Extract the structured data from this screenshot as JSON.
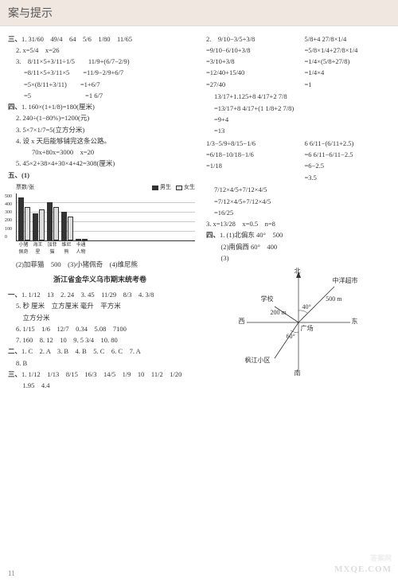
{
  "header": {
    "title": "案与提示"
  },
  "left": {
    "sec3": {
      "label": "三、",
      "item1": "1. 31/60　49/4　64　5/6　1/80　11/65",
      "item2": "2. x=5/4　x=26",
      "item3": {
        "a": "3.　8/11×5+3/11÷1/5　　11/9+(6/7−2/9)",
        "b": "=8/11×5+3/11×5　　=11/9−2/9+6/7",
        "c": "=5×(8/11+3/11)　　=1+6/7",
        "d": "=5　　　　　　　　=1 6/7"
      }
    },
    "sec4": {
      "label": "四、",
      "item1": "1. 160×(1+1/8)=180(厘米)",
      "item2": "2. 240÷(1−80%)=1200(元)",
      "item3": "3. 5×7×1/7=5(立方分米)",
      "item4": "4. 设 x 天后能够铺完这条公路。",
      "item4b": "70x+80x=3000　x=20",
      "item5": "5. 45×2+38×4+30×4+42=308(厘米)"
    },
    "sec5": {
      "label": "五、(1)",
      "chart": {
        "y_axis_label": "票数/张",
        "y_ticks": [
          "0",
          "100",
          "200",
          "300",
          "400",
          "500"
        ],
        "legend": [
          {
            "name": "男生",
            "color": "#333333"
          },
          {
            "name": "女生",
            "color": "#dddddd"
          }
        ],
        "categories": [
          "小猪佩奇",
          "海王星",
          "加菲猫",
          "维尼熊",
          "卡通人物"
        ],
        "series_male": [
          450,
          280,
          400,
          300,
          0
        ],
        "series_female": [
          350,
          320,
          350,
          250,
          0
        ],
        "max": 500
      },
      "item2": "(2)加菲猫　500　(3)小猪佩奇　(4)维尼熊"
    },
    "exam_title": "浙江省金华义乌市期末统考卷",
    "secA": {
      "label": "一、",
      "item1": "1. 1/12　13　2. 24　3. 45　11/29　8/3　4. 3/8",
      "item5": "5. 秒 厘米　立方厘米 毫升　平方米",
      "item5b": "　立方分米",
      "item6": "6. 1/15　1/6　12/7　0.34　5.08　7100",
      "item7": "7. 160　8. 12　10　9. 5 3/4　10. 80"
    },
    "secB": {
      "label": "二、",
      "text": "1. C　2. A　3. B　4. B　5. C　6. C　7. A",
      "text2": "8. B"
    },
    "secC": {
      "label": "三、",
      "item1": "1. 1/12　1/13　8/15　16/3　14/5　1/9　10　11/2　1/20",
      "item2": "　1.95　4.4"
    }
  },
  "right": {
    "item2": {
      "row1a": "2.　9/10−3/5+3/8",
      "row1b": "5/8+4 27/8×1/4",
      "row2a": "=9/10−6/10+3/8",
      "row2b": "=5/8×1/4+27/8×1/4",
      "row3a": "=3/10+3/8",
      "row3b": "=1/4×(5/8+27/8)",
      "row4a": "=12/40+15/40",
      "row4b": "=1/4×4",
      "row5a": "=27/40",
      "row5b": "=1",
      "row6": "13/17+1.125+8 4/17+2 7/8",
      "row7": "=13/17+8 4/17+(1 1/8+2 7/8)",
      "row8": "=9+4",
      "row9": "=13",
      "row10a": "1/3−5/9÷8/15−1/6",
      "row10b": "6 6/11−(6/11+2.5)",
      "row11a": "=6/18−10/18−1/6",
      "row11b": "=6 6/11−6/11−2.5",
      "row12a": "=1/18",
      "row12b": "=6−2.5",
      "row13b": "=3.5",
      "row14": "7/12×4/5+7/12×4/5",
      "row15": "=7/12×4/5+7/12×4/5",
      "row16": "=16/25"
    },
    "item3": "3. x=13/28　x=0.5　n=8",
    "sec4": {
      "label": "四、",
      "item1": "1. (1)北偏东 40°　500",
      "item2": "　(2)南偏西 60°　400",
      "item3": "　(3)"
    },
    "compass": {
      "north": "北",
      "south": "南",
      "east": "东",
      "west": "西",
      "center": "广场",
      "ne_label": "中洋超市",
      "ne_dist": "500 m",
      "ne_angle": "40°",
      "nw_label": "学校",
      "nw_dist": "200 m",
      "sw_label": "枫江小区",
      "sw_angle": "60°"
    }
  },
  "pagenum": "11",
  "watermark1": "答案网",
  "watermark2": "MXQE.COM"
}
